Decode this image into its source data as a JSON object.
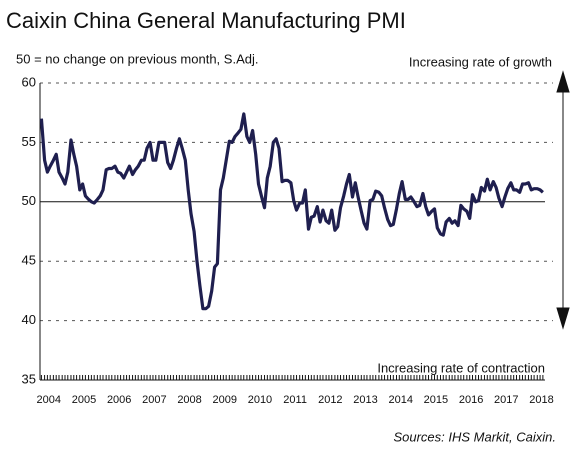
{
  "chart_data": {
    "type": "line",
    "title": "Caixin China General Manufacturing PMI",
    "subtitle": "50 = no change on previous month, S.Adj.",
    "annotations": [
      "Increasing rate of growth",
      "Increasing rate of contraction"
    ],
    "source": "Sources: IHS Markit, Caixin.",
    "x": [
      2004.29,
      2004.38,
      2004.46,
      2004.54,
      2004.63,
      2004.71,
      2004.79,
      2004.88,
      2004.96,
      2005.04,
      2005.13,
      2005.21,
      2005.29,
      2005.38,
      2005.46,
      2005.54,
      2005.63,
      2005.71,
      2005.79,
      2005.88,
      2005.96,
      2006.04,
      2006.13,
      2006.21,
      2006.29,
      2006.38,
      2006.46,
      2006.54,
      2006.63,
      2006.71,
      2006.79,
      2006.88,
      2006.96,
      2007.04,
      2007.13,
      2007.21,
      2007.29,
      2007.38,
      2007.46,
      2007.54,
      2007.63,
      2007.71,
      2007.79,
      2007.88,
      2007.96,
      2008.04,
      2008.13,
      2008.21,
      2008.29,
      2008.38,
      2008.46,
      2008.54,
      2008.63,
      2008.71,
      2008.79,
      2008.88,
      2008.96,
      2009.04,
      2009.13,
      2009.21,
      2009.29,
      2009.38,
      2009.46,
      2009.54,
      2009.63,
      2009.71,
      2009.79,
      2009.88,
      2009.96,
      2010.04,
      2010.13,
      2010.21,
      2010.29,
      2010.38,
      2010.46,
      2010.54,
      2010.63,
      2010.71,
      2010.79,
      2010.88,
      2010.96,
      2011.04,
      2011.13,
      2011.21,
      2011.29,
      2011.38,
      2011.46,
      2011.54,
      2011.63,
      2011.71,
      2011.79,
      2011.88,
      2011.96,
      2012.04,
      2012.13,
      2012.21,
      2012.29,
      2012.38,
      2012.46,
      2012.54,
      2012.63,
      2012.71,
      2012.79,
      2012.88,
      2012.96,
      2013.04,
      2013.13,
      2013.21,
      2013.29,
      2013.38,
      2013.46,
      2013.54,
      2013.63,
      2013.71,
      2013.79,
      2013.88,
      2013.96,
      2014.04,
      2014.13,
      2014.21,
      2014.29,
      2014.38,
      2014.46,
      2014.54,
      2014.63,
      2014.71,
      2014.79,
      2014.88,
      2014.96,
      2015.04,
      2015.13,
      2015.21,
      2015.29,
      2015.38,
      2015.46,
      2015.54,
      2015.63,
      2015.71,
      2015.79,
      2015.88,
      2015.96,
      2016.04,
      2016.13,
      2016.21,
      2016.29,
      2016.38,
      2016.46,
      2016.54,
      2016.63,
      2016.71,
      2016.79,
      2016.88,
      2016.96,
      2017.04,
      2017.13,
      2017.21,
      2017.29,
      2017.38,
      2017.46,
      2017.54,
      2017.63,
      2017.71,
      2017.79,
      2017.88,
      2017.96,
      2018.04,
      2018.13,
      2018.21,
      2018.29,
      2018.38,
      2018.46,
      2018.54
    ],
    "series": [
      {
        "name": "PMI",
        "color": "#1f1f4f",
        "values": [
          57,
          53.5,
          52.5,
          53,
          53.5,
          54,
          52.5,
          52,
          51.5,
          52.5,
          55.2,
          54,
          53,
          51,
          51.5,
          50.5,
          50.2,
          50,
          49.9,
          50.2,
          50.5,
          51,
          52.7,
          52.8,
          52.8,
          53,
          52.5,
          52.4,
          52,
          52.5,
          53,
          52.3,
          52.7,
          53,
          53.5,
          53.5,
          54.5,
          55,
          53.5,
          53.5,
          55,
          55,
          55,
          53.3,
          52.8,
          53.5,
          54.5,
          55.3,
          54.5,
          53.5,
          51,
          49,
          47.5,
          45,
          43,
          41,
          41,
          41.2,
          42.5,
          44.5,
          44.8,
          51,
          52,
          53.5,
          55.1,
          55,
          55.5,
          55.8,
          56.1,
          57.4,
          55.5,
          55,
          56,
          54,
          51.5,
          50.5,
          49.5,
          52,
          53,
          55,
          55.3,
          54.5,
          51.7,
          51.8,
          51.8,
          51.6,
          50.1,
          49.3,
          49.9,
          49.9,
          51,
          47.7,
          48.7,
          48.8,
          49.6,
          48.3,
          49.3,
          48.4,
          48.2,
          49.3,
          47.6,
          47.9,
          49.5,
          50.5,
          51.5,
          52.3,
          50.4,
          51.6,
          50.4,
          49.2,
          48.2,
          47.7,
          50.1,
          50.2,
          50.9,
          50.8,
          50.5,
          49.5,
          48.5,
          48,
          48.1,
          49.4,
          50.7,
          51.7,
          50.2,
          50.2,
          50.4,
          50,
          49.6,
          49.7,
          50.7,
          49.6,
          48.9,
          49.2,
          49.4,
          47.8,
          47.3,
          47.2,
          48.3,
          48.6,
          48.2,
          48.4,
          48,
          49.7,
          49.4,
          49.2,
          48.6,
          50.6,
          50,
          50.1,
          51.2,
          50.9,
          51.9,
          51,
          51.7,
          51.2,
          50.3,
          49.6,
          50.4,
          51.1,
          51.6,
          51,
          51,
          50.8,
          51.5,
          51.5,
          51.6,
          51,
          51.1,
          51.1,
          51,
          50.8
        ]
      }
    ],
    "xlim": [
      2004.25,
      2018.6
    ],
    "xticks": [
      {
        "value": 2004.5,
        "label": "2004"
      },
      {
        "value": 2005.5,
        "label": "2005"
      },
      {
        "value": 2006.5,
        "label": "2006"
      },
      {
        "value": 2007.5,
        "label": "2007"
      },
      {
        "value": 2008.5,
        "label": "2008"
      },
      {
        "value": 2009.5,
        "label": "2009"
      },
      {
        "value": 2010.5,
        "label": "2010"
      },
      {
        "value": 2011.5,
        "label": "2011"
      },
      {
        "value": 2012.5,
        "label": "2012"
      },
      {
        "value": 2013.5,
        "label": "2013"
      },
      {
        "value": 2014.5,
        "label": "2014"
      },
      {
        "value": 2015.5,
        "label": "2015"
      },
      {
        "value": 2016.5,
        "label": "2016"
      },
      {
        "value": 2017.5,
        "label": "2017"
      },
      {
        "value": 2018.5,
        "label": "2018"
      }
    ],
    "ylim": [
      35,
      60
    ],
    "yticks": [
      35,
      40,
      45,
      50,
      55,
      60
    ],
    "reference_line": 50,
    "grid": true
  }
}
